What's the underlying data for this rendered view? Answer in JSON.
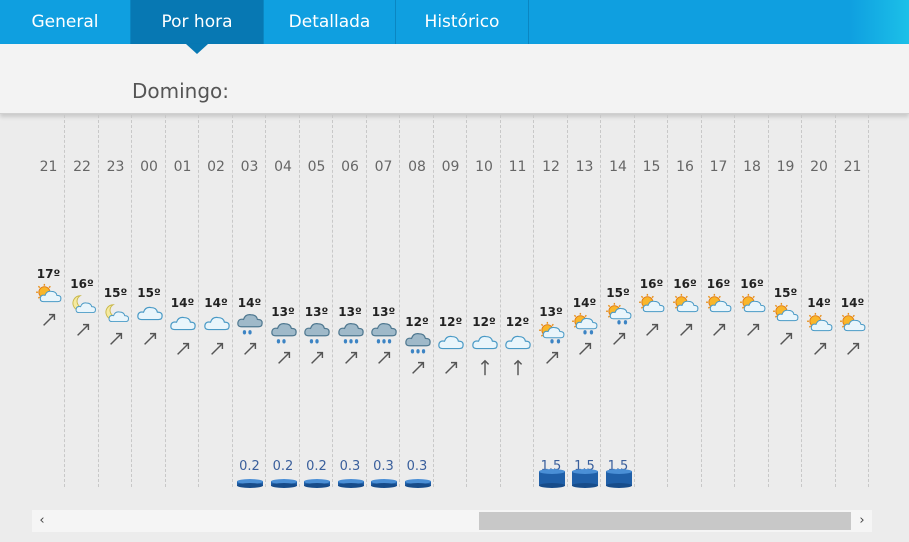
{
  "tabs": [
    {
      "label": "General"
    },
    {
      "label": "Por hora",
      "active": true
    },
    {
      "label": "Detallada"
    },
    {
      "label": "Histórico"
    }
  ],
  "day_label": "Domingo:",
  "hours": [
    {
      "hour": "21",
      "temp": "17º",
      "sky": "sun-cloud",
      "wind": "ne",
      "rain": ""
    },
    {
      "hour": "22",
      "temp": "16º",
      "sky": "moon-cloud",
      "wind": "ne",
      "rain": ""
    },
    {
      "hour": "23",
      "temp": "15º",
      "sky": "moon-cloud",
      "wind": "ne",
      "rain": ""
    },
    {
      "hour": "00",
      "temp": "15º",
      "sky": "cloud",
      "wind": "ne",
      "rain": ""
    },
    {
      "hour": "01",
      "temp": "14º",
      "sky": "cloud",
      "wind": "ne",
      "rain": ""
    },
    {
      "hour": "02",
      "temp": "14º",
      "sky": "cloud",
      "wind": "ne",
      "rain": ""
    },
    {
      "hour": "03",
      "temp": "14º",
      "sky": "rain-cloud",
      "wind": "ne",
      "rain": "0.2"
    },
    {
      "hour": "04",
      "temp": "13º",
      "sky": "rain-cloud",
      "wind": "ne",
      "rain": "0.2"
    },
    {
      "hour": "05",
      "temp": "13º",
      "sky": "rain-cloud",
      "wind": "ne",
      "rain": "0.2"
    },
    {
      "hour": "06",
      "temp": "13º",
      "sky": "heavy-rain-cloud",
      "wind": "ne",
      "rain": "0.3"
    },
    {
      "hour": "07",
      "temp": "13º",
      "sky": "heavy-rain-cloud",
      "wind": "ne",
      "rain": "0.3"
    },
    {
      "hour": "08",
      "temp": "12º",
      "sky": "heavy-rain-cloud",
      "wind": "ne",
      "rain": "0.3"
    },
    {
      "hour": "09",
      "temp": "12º",
      "sky": "cloud",
      "wind": "ne",
      "rain": ""
    },
    {
      "hour": "10",
      "temp": "12º",
      "sky": "cloud",
      "wind": "n",
      "rain": ""
    },
    {
      "hour": "11",
      "temp": "12º",
      "sky": "cloud",
      "wind": "n",
      "rain": ""
    },
    {
      "hour": "12",
      "temp": "13º",
      "sky": "sun-rain",
      "wind": "ne",
      "rain": "1.5"
    },
    {
      "hour": "13",
      "temp": "14º",
      "sky": "sun-rain",
      "wind": "ne",
      "rain": "1.5"
    },
    {
      "hour": "14",
      "temp": "15º",
      "sky": "sun-rain",
      "wind": "ne",
      "rain": "1.5"
    },
    {
      "hour": "15",
      "temp": "16º",
      "sky": "sun-cloud",
      "wind": "ne",
      "rain": ""
    },
    {
      "hour": "16",
      "temp": "16º",
      "sky": "sun-cloud",
      "wind": "ne",
      "rain": ""
    },
    {
      "hour": "17",
      "temp": "16º",
      "sky": "sun-cloud",
      "wind": "ne",
      "rain": ""
    },
    {
      "hour": "18",
      "temp": "16º",
      "sky": "sun-cloud",
      "wind": "ne",
      "rain": ""
    },
    {
      "hour": "19",
      "temp": "15º",
      "sky": "sun-cloud",
      "wind": "ne",
      "rain": ""
    },
    {
      "hour": "20",
      "temp": "14º",
      "sky": "sun-cloud",
      "wind": "ne",
      "rain": ""
    },
    {
      "hour": "21",
      "temp": "14º",
      "sky": "sun-cloud",
      "wind": "ne",
      "rain": ""
    }
  ],
  "scrollbar": {
    "left_arrow": "‹",
    "right_arrow": "›"
  }
}
